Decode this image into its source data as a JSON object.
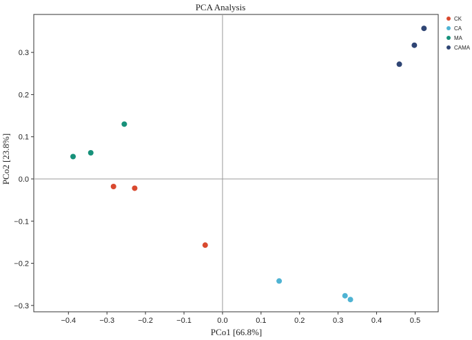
{
  "chart_data": {
    "type": "scatter",
    "title": "PCA Analysis",
    "xlabel": "PCo1 [66.8%]",
    "ylabel": "PCo2 [23.8%]",
    "xlim": [
      -0.49,
      0.56
    ],
    "ylim": [
      -0.315,
      0.39
    ],
    "x_ticks": [
      -0.4,
      -0.3,
      -0.2,
      -0.1,
      0.0,
      0.1,
      0.2,
      0.3,
      0.4,
      0.5
    ],
    "x_tick_labels": [
      "−0.4",
      "−0.3",
      "−0.2",
      "−0.1",
      "0.0",
      "0.1",
      "0.2",
      "0.3",
      "0.4",
      "0.5"
    ],
    "y_ticks": [
      -0.3,
      -0.2,
      -0.1,
      0.0,
      0.1,
      0.2,
      0.3
    ],
    "y_tick_labels": [
      "−0.3",
      "−0.2",
      "−0.1",
      "0.0",
      "0.1",
      "0.2",
      "0.3"
    ],
    "reference_lines": {
      "x": 0,
      "y": 0
    },
    "grid": false,
    "legend_position": "outside-top-right",
    "series": [
      {
        "name": "CK",
        "color": "#d9492f",
        "points": [
          [
            -0.283,
            -0.018
          ],
          [
            -0.228,
            -0.022
          ],
          [
            -0.045,
            -0.157
          ]
        ]
      },
      {
        "name": "CA",
        "color": "#4fb3d3",
        "points": [
          [
            0.147,
            -0.242
          ],
          [
            0.318,
            -0.277
          ],
          [
            0.332,
            -0.286
          ]
        ]
      },
      {
        "name": "MA",
        "color": "#17917a",
        "points": [
          [
            -0.388,
            0.053
          ],
          [
            -0.342,
            0.062
          ],
          [
            -0.255,
            0.13
          ]
        ]
      },
      {
        "name": "CAMA",
        "color": "#2f4574",
        "points": [
          [
            0.459,
            0.272
          ],
          [
            0.498,
            0.317
          ],
          [
            0.523,
            0.357
          ]
        ]
      }
    ]
  }
}
